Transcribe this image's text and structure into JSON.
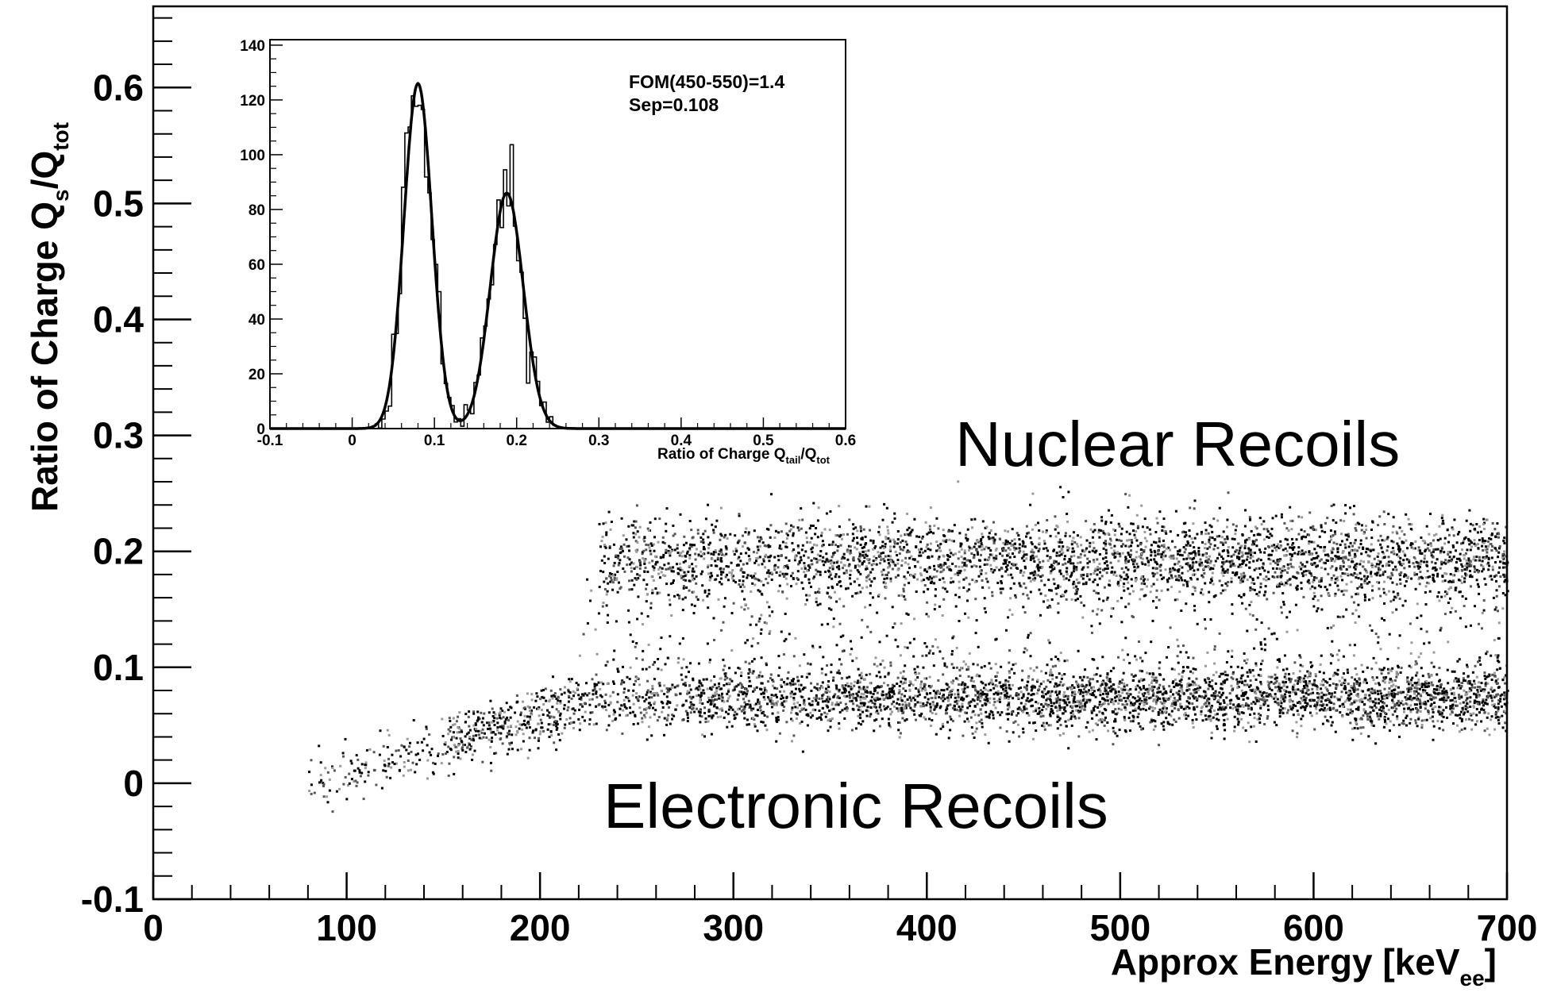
{
  "chart_data": [
    {
      "type": "scatter",
      "title": "",
      "xlabel": "Approx Energy [keV",
      "xlabel_sub": "ee",
      "xlabel_close": "]",
      "ylabel": "Ratio of Charge Q",
      "ylabel_sub1": "s",
      "ylabel_mid": "/Q",
      "ylabel_sub2": "tot",
      "xlim": [
        0,
        700
      ],
      "ylim": [
        -0.1,
        0.67
      ],
      "xticks": [
        "0",
        "100",
        "200",
        "300",
        "400",
        "500",
        "600",
        "700"
      ],
      "yticks": [
        "-0.1",
        "0",
        "0.1",
        "0.2",
        "0.3",
        "0.4",
        "0.5",
        "0.6"
      ],
      "grid": false,
      "bands": [
        {
          "band": "electronic",
          "x_start": 80,
          "x_end": 700,
          "y_center_start": 0.0,
          "y_center_plateau": 0.075,
          "y_width": 0.03
        },
        {
          "band": "nuclear",
          "x_start": 230,
          "x_end": 700,
          "y_center": 0.195,
          "y_width": 0.035
        }
      ],
      "annotations": [
        {
          "text": "Nuclear Recoils",
          "x": 540,
          "y": 0.29
        },
        {
          "text": "Electronic Recoils",
          "x": 360,
          "y": -0.025
        }
      ]
    },
    {
      "type": "line",
      "title": "",
      "xlabel": "Ratio of Charge Q",
      "xlabel_sub1": "tail",
      "xlabel_mid": "/Q",
      "xlabel_sub2": "tot",
      "ylabel": "",
      "xlim": [
        -0.1,
        0.6
      ],
      "ylim": [
        0,
        142
      ],
      "xticks": [
        "-0.1",
        "0",
        "0.1",
        "0.2",
        "0.3",
        "0.4",
        "0.5",
        "0.6"
      ],
      "yticks": [
        "0",
        "20",
        "40",
        "60",
        "80",
        "100",
        "120",
        "140"
      ],
      "series": [
        {
          "peak": "electronic",
          "mean": 0.08,
          "sigma": 0.017,
          "amplitude": 126
        },
        {
          "peak": "nuclear",
          "mean": 0.188,
          "sigma": 0.02,
          "amplitude": 86
        }
      ],
      "stats": [
        "FOM(450-550)=1.4",
        "Sep=0.108"
      ]
    }
  ]
}
